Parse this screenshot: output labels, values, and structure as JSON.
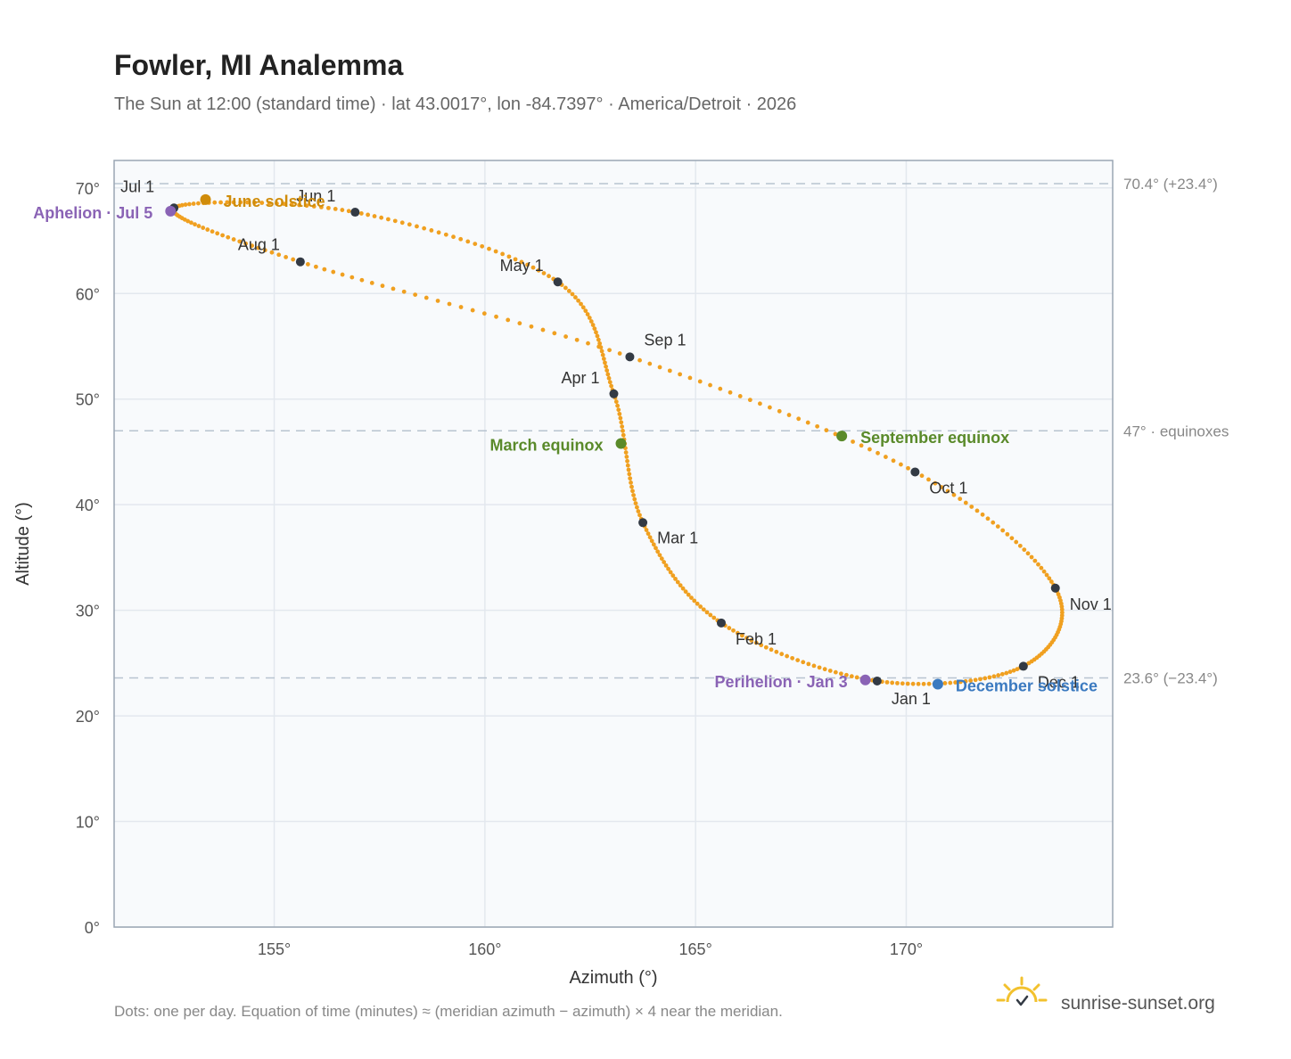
{
  "chart_data": {
    "type": "scatter",
    "title": "Fowler, MI Analemma",
    "subtitle": "The Sun at 12:00 (standard time) · lat 43.0017°, lon -84.7397° · America/Detroit · 2026",
    "xlabel": "Azimuth (°)",
    "ylabel": "Altitude (°)",
    "xlim": [
      151.2,
      174.9
    ],
    "ylim": [
      0,
      72.6
    ],
    "x_ticks": [
      155,
      160,
      165,
      170
    ],
    "x_tick_labels": [
      "155°",
      "160°",
      "165°",
      "170°"
    ],
    "y_ticks": [
      0,
      10,
      20,
      30,
      40,
      50,
      60,
      70
    ],
    "y_tick_labels": [
      "0°",
      "10°",
      "20°",
      "30°",
      "40°",
      "50°",
      "60°",
      "70°"
    ],
    "grid": true,
    "series": [
      {
        "points_note_hidden": "",
        "x": [
          169.31,
          165.61,
          163.75,
          163.06,
          161.73,
          156.92,
          152.62,
          155.62,
          163.44,
          170.21,
          173.54,
          172.78
        ],
        "y": [
          23.3,
          28.8,
          38.3,
          50.5,
          61.1,
          67.7,
          68.1,
          63.0,
          54.0,
          43.1,
          32.1,
          24.7
        ]
      }
    ],
    "months": [
      {
        "label": "Jan 1",
        "x": 169.31,
        "y": 23.3
      },
      {
        "label": "Feb 1",
        "x": 165.61,
        "y": 28.8
      },
      {
        "label": "Mar 1",
        "x": 163.75,
        "y": 38.3
      },
      {
        "label": "Apr 1",
        "x": 163.06,
        "y": 50.5
      },
      {
        "label": "May 1",
        "x": 161.73,
        "y": 61.1
      },
      {
        "label": "Jun 1",
        "x": 156.92,
        "y": 67.7
      },
      {
        "label": "Jul 1",
        "x": 152.62,
        "y": 68.1
      },
      {
        "label": "Aug 1",
        "x": 155.62,
        "y": 63.0
      },
      {
        "label": "Sep 1",
        "x": 163.44,
        "y": 54.0
      },
      {
        "label": "Oct 1",
        "x": 170.21,
        "y": 43.1
      },
      {
        "label": "Nov 1",
        "x": 173.54,
        "y": 32.1
      },
      {
        "label": "Dec 1",
        "x": 172.78,
        "y": 24.7
      }
    ],
    "events": [
      {
        "label": "March equinox",
        "x": 163.23,
        "y": 45.8,
        "color": "#5a8a2a"
      },
      {
        "label": "June solstice",
        "x": 153.37,
        "y": 68.9,
        "color": "#d08c0a"
      },
      {
        "label": "September equinox",
        "x": 168.47,
        "y": 46.5,
        "color": "#5a8a2a"
      },
      {
        "label": "December solstice",
        "x": 170.75,
        "y": 23.0,
        "color": "#3b7ac0"
      },
      {
        "label": "Aphelion · Jul 5",
        "x": 152.54,
        "y": 67.8,
        "color": "#8a63b5"
      },
      {
        "label": "Perihelion · Jan 3",
        "x": 169.03,
        "y": 23.4,
        "color": "#8a63b5"
      }
    ],
    "reference_lines": [
      {
        "y": 70.4,
        "label": "70.4° (+23.4°)"
      },
      {
        "y": 47.0,
        "label": "47° · equinoxes"
      },
      {
        "y": 23.6,
        "label": "23.6° (−23.4°)"
      }
    ],
    "colors": {
      "curve": "#f0a020",
      "month_marker": "#333a44",
      "reference": "#b8c4d0",
      "plot_background": "#f8fafc",
      "frame": "#9aa6b4",
      "grid": "#e3e8ee"
    }
  },
  "footnote": "Dots: one per day. Equation of time (minutes) ≈ (meridian azimuth − azimuth) × 4 near the meridian.",
  "brand": {
    "name": "sunrise-sunset.org",
    "icon": "sun-logo-icon"
  }
}
